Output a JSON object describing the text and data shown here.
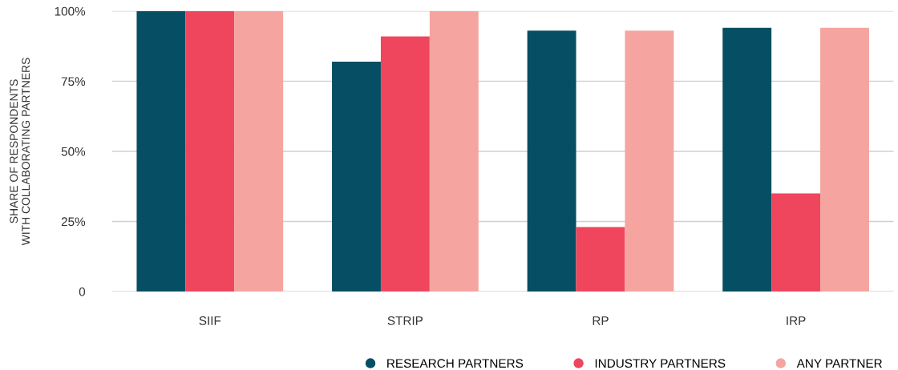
{
  "chart_data": {
    "type": "bar",
    "ylabel": "SHARE OF RESPONDENTS\nWITH COLLABORATING PARTNERS",
    "categories": [
      "SIIF",
      "STRIP",
      "RP",
      "IRP"
    ],
    "series": [
      {
        "name": "RESEARCH PARTNERS",
        "color": "#054e63",
        "values": [
          100,
          82,
          93,
          94
        ]
      },
      {
        "name": "INDUSTRY PARTNERS",
        "color": "#ef465e",
        "values": [
          100,
          91,
          23,
          35
        ]
      },
      {
        "name": "ANY PARTNER",
        "color": "#f5a4a0",
        "values": [
          100,
          100,
          93,
          94
        ]
      }
    ],
    "ylim": [
      0,
      100
    ],
    "yticks": [
      {
        "value": 0,
        "label": "0"
      },
      {
        "value": 25,
        "label": "25%"
      },
      {
        "value": 50,
        "label": "50%"
      },
      {
        "value": 75,
        "label": "75%"
      },
      {
        "value": 100,
        "label": "100%"
      }
    ],
    "grid": "y",
    "legend": "bottom right"
  }
}
